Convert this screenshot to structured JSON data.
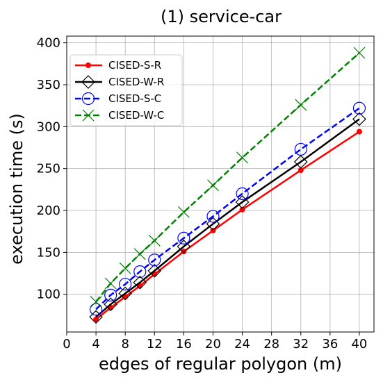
{
  "chart_data": {
    "type": "line",
    "title": "(1) service-car",
    "xlabel": "edges of regular polygon (m)",
    "ylabel": "execution time (s)",
    "xlim": [
      0,
      42
    ],
    "ylim": [
      55,
      408
    ],
    "xticks": [
      0,
      4,
      8,
      12,
      16,
      20,
      24,
      28,
      32,
      36,
      40
    ],
    "yticks": [
      100,
      150,
      200,
      250,
      300,
      350,
      400
    ],
    "grid": true,
    "legend_position": "top-left",
    "x": [
      4,
      6,
      8,
      10,
      12,
      16,
      20,
      24,
      32,
      40
    ],
    "series": [
      {
        "name": "CISED-S-R",
        "color": "#ff0000",
        "dash": "solid",
        "marker": "dot",
        "values": [
          70,
          84,
          97,
          110,
          124,
          151,
          176,
          201,
          248,
          294
        ]
      },
      {
        "name": "CISED-W-R",
        "color": "#000000",
        "dash": "solid",
        "marker": "diamond",
        "values": [
          73,
          88,
          101,
          114,
          128,
          157,
          184,
          210,
          258,
          309
        ]
      },
      {
        "name": "CISED-S-C",
        "color": "#0000ff",
        "dash": "dashed",
        "marker": "circle",
        "values": [
          82,
          99,
          112,
          127,
          141,
          167,
          193,
          220,
          273,
          322
        ]
      },
      {
        "name": "CISED-W-C",
        "color": "#008000",
        "dash": "dashed",
        "marker": "x",
        "values": [
          91,
          113,
          131,
          148,
          164,
          198,
          230,
          263,
          326,
          388
        ]
      }
    ]
  }
}
